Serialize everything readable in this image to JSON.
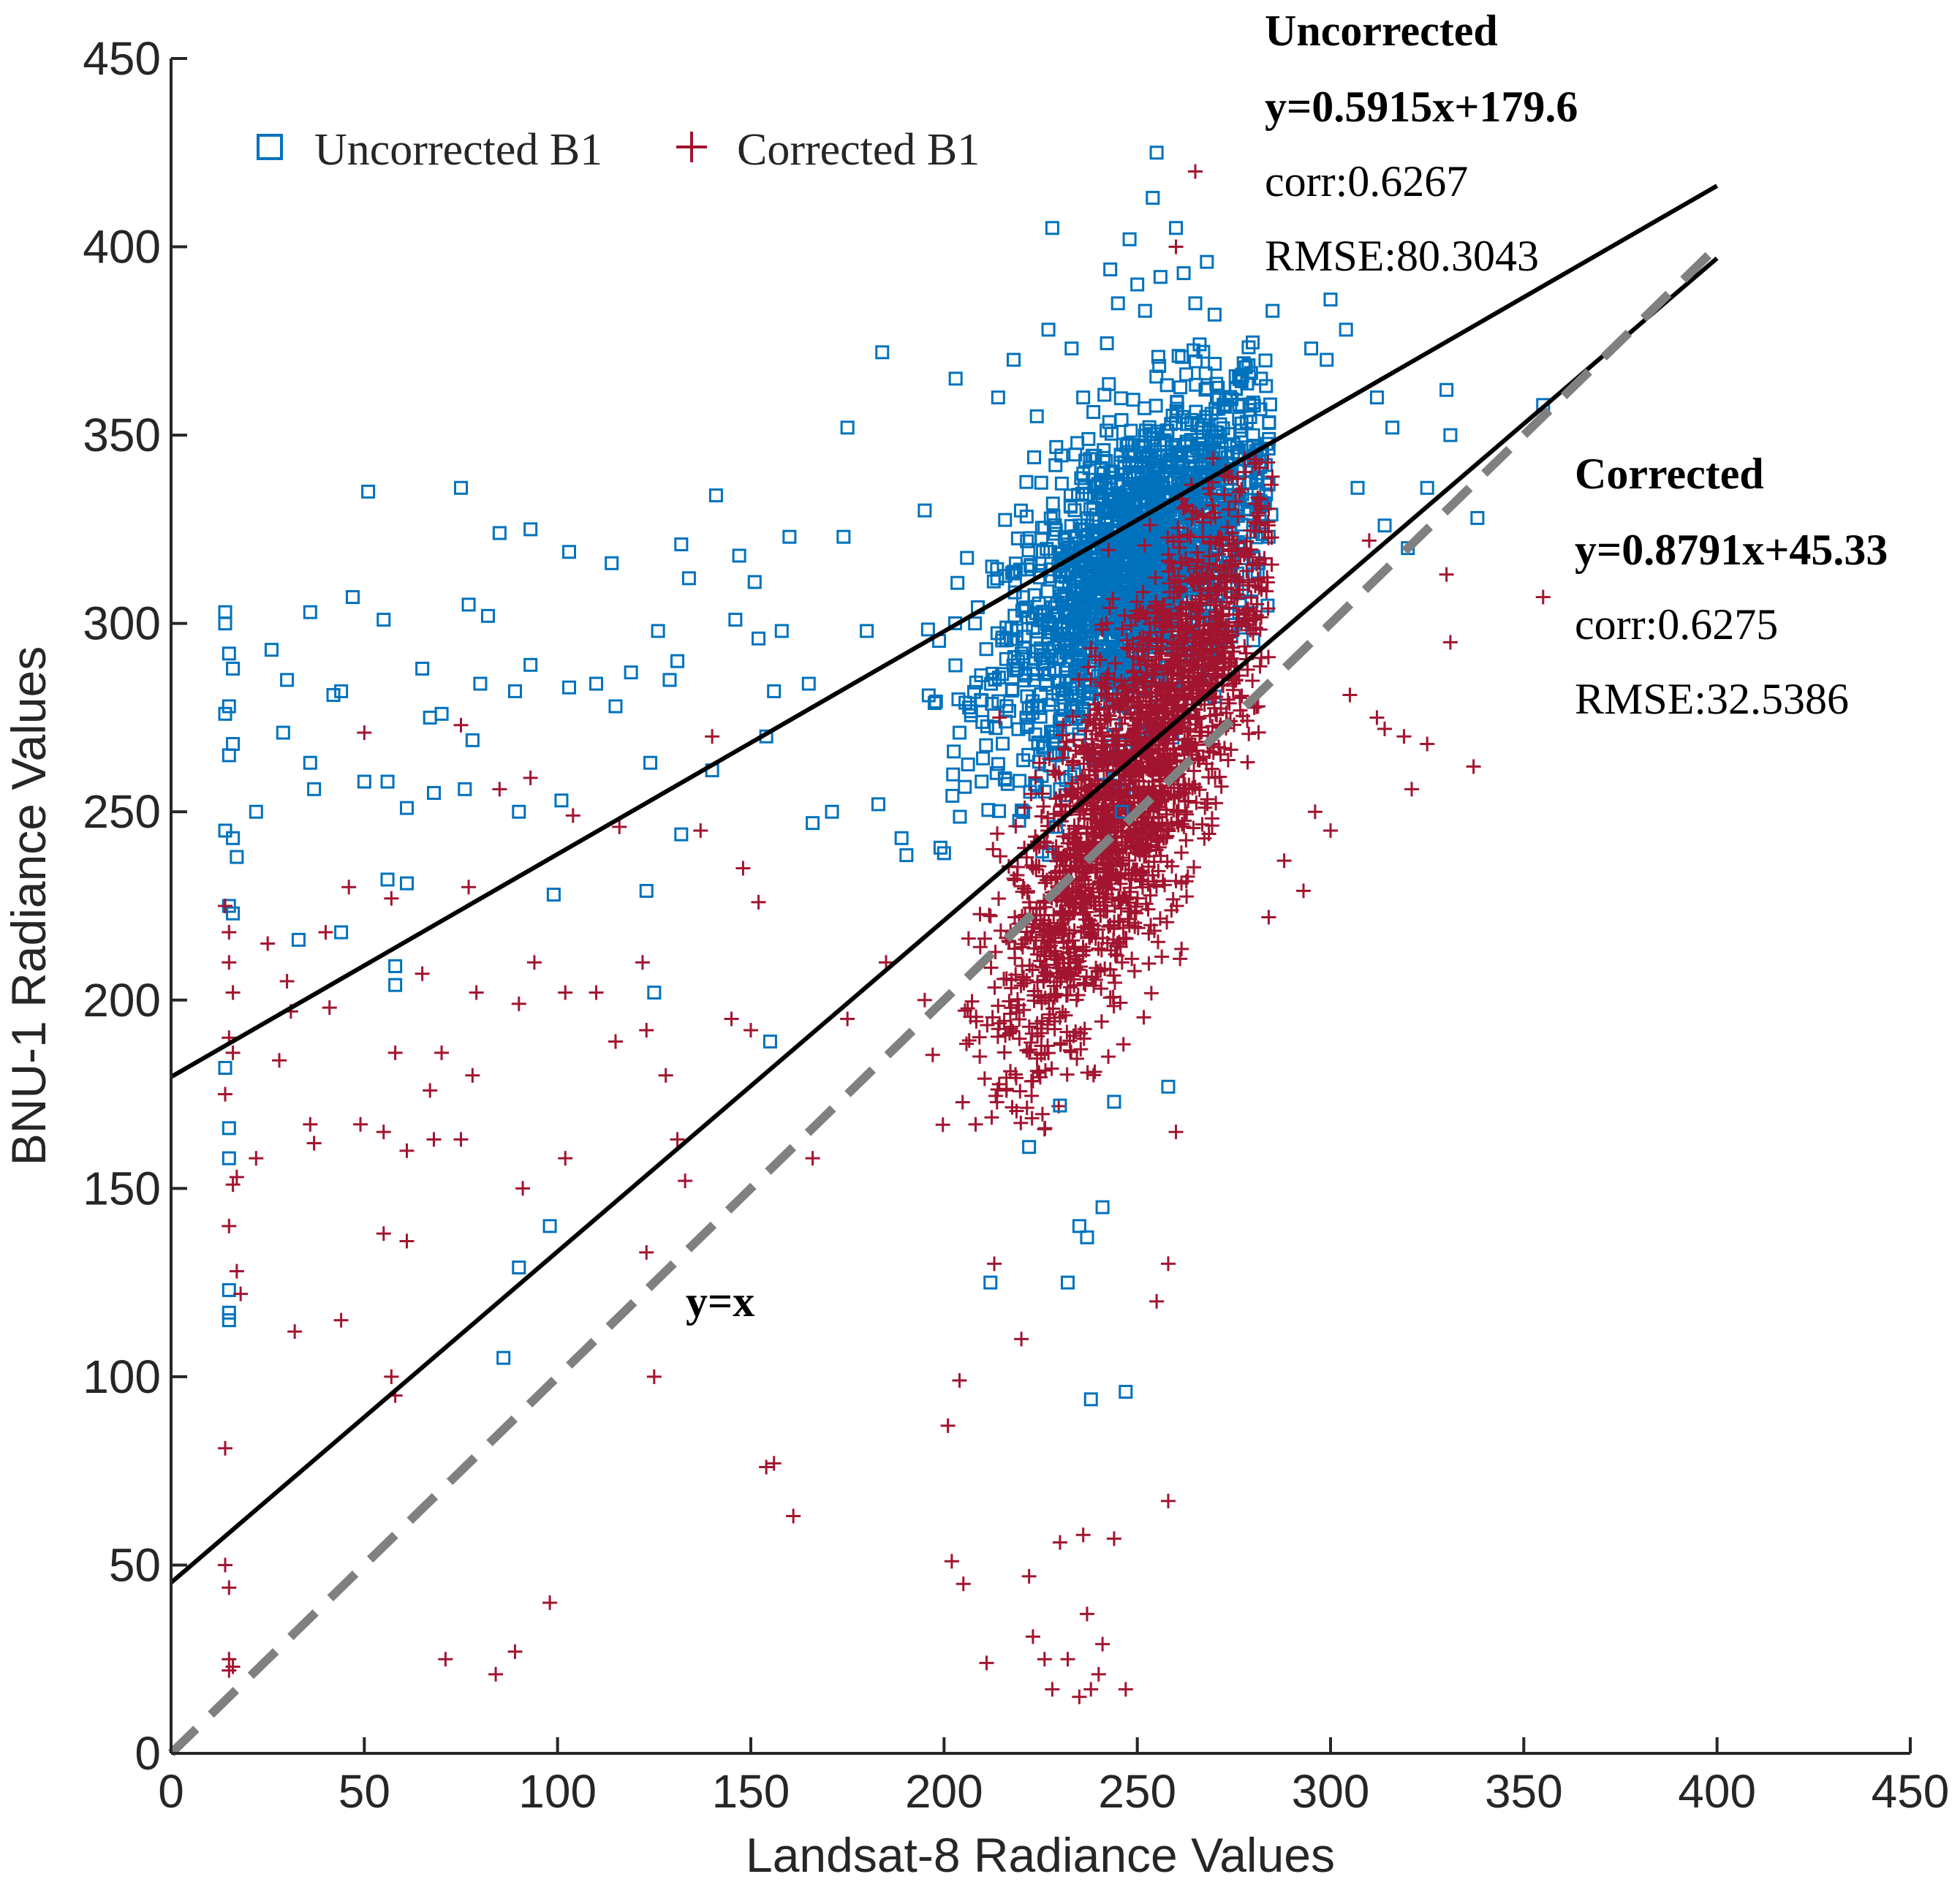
{
  "chart_data": {
    "type": "scatter",
    "xlabel": "Landsat-8 Radiance Values",
    "ylabel": "BNU-1 Radiance Values",
    "xlim": [
      0,
      450
    ],
    "ylim": [
      0,
      450
    ],
    "xticks": [
      "0",
      "50",
      "100",
      "150",
      "200",
      "250",
      "300",
      "350",
      "400",
      "450"
    ],
    "yticks": [
      "0",
      "50",
      "100",
      "150",
      "200",
      "250",
      "300",
      "350",
      "400",
      "450"
    ],
    "grid": false,
    "legend": {
      "placement": "top-left",
      "entries": [
        "Uncorrected B1",
        "Corrected B1"
      ]
    },
    "series": [
      {
        "name": "Uncorrected B1",
        "marker": "square",
        "color": "#0072BD",
        "cluster": {
          "x_center": 250,
          "y_center": 315,
          "x_spread": 18,
          "y_spread": 30
        },
        "points": [
          [
            14,
            303
          ],
          [
            14,
            300
          ],
          [
            15,
            292
          ],
          [
            16,
            288
          ],
          [
            15,
            278
          ],
          [
            14,
            276
          ],
          [
            16,
            268
          ],
          [
            15,
            265
          ],
          [
            14,
            245
          ],
          [
            16,
            243
          ],
          [
            17,
            238
          ],
          [
            15,
            225
          ],
          [
            16,
            223
          ],
          [
            14,
            182
          ],
          [
            15,
            166
          ],
          [
            15,
            158
          ],
          [
            15,
            123
          ],
          [
            15,
            117
          ],
          [
            15,
            115
          ],
          [
            22,
            250
          ],
          [
            26,
            293
          ],
          [
            29,
            271
          ],
          [
            30,
            285
          ],
          [
            33,
            216
          ],
          [
            36,
            263
          ],
          [
            37,
            256
          ],
          [
            36,
            303
          ],
          [
            42,
            281
          ],
          [
            44,
            282
          ],
          [
            44,
            218
          ],
          [
            47,
            307
          ],
          [
            50,
            258
          ],
          [
            51,
            335
          ],
          [
            55,
            301
          ],
          [
            56,
            232
          ],
          [
            56,
            258
          ],
          [
            58,
            209
          ],
          [
            58,
            204
          ],
          [
            61,
            231
          ],
          [
            61,
            251
          ],
          [
            65,
            288
          ],
          [
            67,
            275
          ],
          [
            68,
            255
          ],
          [
            70,
            276
          ],
          [
            75,
            336
          ],
          [
            76,
            256
          ],
          [
            77,
            305
          ],
          [
            78,
            269
          ],
          [
            80,
            284
          ],
          [
            82,
            302
          ],
          [
            85,
            324
          ],
          [
            86,
            105
          ],
          [
            89,
            282
          ],
          [
            90,
            250
          ],
          [
            90,
            129
          ],
          [
            93,
            325
          ],
          [
            93,
            289
          ],
          [
            99,
            228
          ],
          [
            98,
            140
          ],
          [
            101,
            253
          ],
          [
            103,
            319
          ],
          [
            103,
            283
          ],
          [
            110,
            284
          ],
          [
            114,
            316
          ],
          [
            115,
            278
          ],
          [
            119,
            287
          ],
          [
            123,
            229
          ],
          [
            124,
            263
          ],
          [
            125,
            202
          ],
          [
            126,
            298
          ],
          [
            129,
            285
          ],
          [
            131,
            290
          ],
          [
            132,
            244
          ],
          [
            132,
            321
          ],
          [
            134,
            312
          ],
          [
            140,
            261
          ],
          [
            141,
            334
          ],
          [
            146,
            301
          ],
          [
            147,
            318
          ],
          [
            151,
            311
          ],
          [
            152,
            296
          ],
          [
            154,
            270
          ],
          [
            155,
            189
          ],
          [
            156,
            282
          ],
          [
            158,
            298
          ],
          [
            160,
            323
          ],
          [
            165,
            284
          ],
          [
            166,
            247
          ],
          [
            171,
            250
          ],
          [
            174,
            323
          ],
          [
            175,
            352
          ],
          [
            180,
            298
          ],
          [
            183,
            252
          ],
          [
            184,
            372
          ],
          [
            189,
            243
          ],
          [
            195,
            330
          ],
          [
            200,
            239
          ],
          [
            203,
            365
          ],
          [
            204,
            271
          ],
          [
            208,
            300
          ],
          [
            212,
            125
          ],
          [
            214,
            360
          ],
          [
            218,
            370
          ],
          [
            222,
            161
          ],
          [
            224,
            355
          ],
          [
            225,
            314
          ],
          [
            227,
            378
          ],
          [
            228,
            405
          ],
          [
            229,
            246
          ],
          [
            230,
            172
          ],
          [
            232,
            125
          ],
          [
            233,
            373
          ],
          [
            235,
            140
          ],
          [
            236,
            360
          ],
          [
            237,
            137
          ],
          [
            238,
            94
          ],
          [
            241,
            145
          ],
          [
            243,
            394
          ],
          [
            244,
            173
          ],
          [
            245,
            385
          ],
          [
            246,
            250
          ],
          [
            247,
            96
          ],
          [
            248,
            402
          ],
          [
            250,
            390
          ],
          [
            252,
            383
          ],
          [
            254,
            413
          ],
          [
            255,
            425
          ],
          [
            256,
            392
          ],
          [
            258,
            177
          ],
          [
            260,
            405
          ],
          [
            262,
            393
          ],
          [
            265,
            385
          ],
          [
            268,
            396
          ],
          [
            270,
            382
          ],
          [
            282,
            365
          ],
          [
            285,
            383
          ],
          [
            295,
            373
          ],
          [
            299,
            370
          ],
          [
            300,
            386
          ],
          [
            304,
            378
          ],
          [
            307,
            336
          ],
          [
            312,
            360
          ],
          [
            314,
            326
          ],
          [
            316,
            352
          ],
          [
            320,
            320
          ],
          [
            325,
            336
          ],
          [
            330,
            362
          ],
          [
            331,
            350
          ],
          [
            338,
            328
          ],
          [
            355,
            358
          ]
        ]
      },
      {
        "name": "Corrected B1",
        "marker": "plus",
        "color": "#A2142F",
        "cluster": {
          "x_center": 250,
          "y_center": 260,
          "x_spread": 18,
          "y_spread": 45
        },
        "points": [
          [
            14,
            81
          ],
          [
            14,
            50
          ],
          [
            15,
            44
          ],
          [
            15,
            25
          ],
          [
            15,
            22
          ],
          [
            16,
            23
          ],
          [
            14,
            225
          ],
          [
            15,
            218
          ],
          [
            15,
            210
          ],
          [
            16,
            202
          ],
          [
            15,
            190
          ],
          [
            16,
            186
          ],
          [
            14,
            175
          ],
          [
            16,
            151
          ],
          [
            17,
            153
          ],
          [
            15,
            140
          ],
          [
            17,
            128
          ],
          [
            18,
            122
          ],
          [
            22,
            158
          ],
          [
            25,
            215
          ],
          [
            28,
            184
          ],
          [
            30,
            205
          ],
          [
            31,
            197
          ],
          [
            32,
            112
          ],
          [
            36,
            167
          ],
          [
            37,
            162
          ],
          [
            40,
            218
          ],
          [
            41,
            198
          ],
          [
            44,
            115
          ],
          [
            46,
            230
          ],
          [
            49,
            167
          ],
          [
            50,
            271
          ],
          [
            55,
            138
          ],
          [
            55,
            165
          ],
          [
            57,
            227
          ],
          [
            57,
            100
          ],
          [
            58,
            186
          ],
          [
            58,
            95
          ],
          [
            61,
            160
          ],
          [
            61,
            136
          ],
          [
            65,
            207
          ],
          [
            67,
            176
          ],
          [
            68,
            163
          ],
          [
            70,
            186
          ],
          [
            71,
            25
          ],
          [
            75,
            273
          ],
          [
            75,
            163
          ],
          [
            77,
            230
          ],
          [
            78,
            180
          ],
          [
            79,
            202
          ],
          [
            84,
            21
          ],
          [
            85,
            256
          ],
          [
            89,
            27
          ],
          [
            90,
            199
          ],
          [
            91,
            150
          ],
          [
            93,
            259
          ],
          [
            94,
            210
          ],
          [
            98,
            40
          ],
          [
            102,
            202
          ],
          [
            102,
            158
          ],
          [
            104,
            249
          ],
          [
            110,
            202
          ],
          [
            115,
            189
          ],
          [
            116,
            246
          ],
          [
            122,
            210
          ],
          [
            123,
            133
          ],
          [
            123,
            192
          ],
          [
            125,
            100
          ],
          [
            128,
            180
          ],
          [
            131,
            163
          ],
          [
            133,
            152
          ],
          [
            137,
            245
          ],
          [
            140,
            270
          ],
          [
            145,
            195
          ],
          [
            148,
            235
          ],
          [
            150,
            192
          ],
          [
            152,
            226
          ],
          [
            154,
            76
          ],
          [
            156,
            77
          ],
          [
            161,
            63
          ],
          [
            166,
            158
          ],
          [
            175,
            195
          ],
          [
            185,
            210
          ],
          [
            195,
            200
          ],
          [
            201,
            87
          ],
          [
            202,
            51
          ],
          [
            204,
            99
          ],
          [
            205,
            45
          ],
          [
            211,
            24
          ],
          [
            213,
            130
          ],
          [
            220,
            110
          ],
          [
            222,
            47
          ],
          [
            223,
            31
          ],
          [
            226,
            25
          ],
          [
            228,
            17
          ],
          [
            230,
            56
          ],
          [
            232,
            25
          ],
          [
            235,
            15
          ],
          [
            236,
            58
          ],
          [
            237,
            37
          ],
          [
            238,
            17
          ],
          [
            240,
            21
          ],
          [
            241,
            29
          ],
          [
            244,
            57
          ],
          [
            247,
            17
          ],
          [
            255,
            120
          ],
          [
            258,
            67
          ],
          [
            258,
            130
          ],
          [
            260,
            165
          ],
          [
            260,
            400
          ],
          [
            265,
            420
          ],
          [
            269,
            328
          ],
          [
            284,
            222
          ],
          [
            288,
            237
          ],
          [
            293,
            229
          ],
          [
            296,
            250
          ],
          [
            300,
            245
          ],
          [
            305,
            281
          ],
          [
            310,
            322
          ],
          [
            312,
            275
          ],
          [
            314,
            272
          ],
          [
            319,
            270
          ],
          [
            321,
            256
          ],
          [
            325,
            268
          ],
          [
            330,
            313
          ],
          [
            331,
            295
          ],
          [
            337,
            262
          ],
          [
            355,
            307
          ]
        ]
      }
    ],
    "lines": [
      {
        "name": "Uncorrected",
        "equation": "y=0.5915x+179.6",
        "slope": 0.5915,
        "intercept": 179.6,
        "x_range": [
          0,
          400
        ],
        "color": "#000000",
        "style": "solid"
      },
      {
        "name": "Corrected",
        "equation": "y=0.8791x+45.33",
        "slope": 0.8791,
        "intercept": 45.33,
        "x_range": [
          0,
          400
        ],
        "color": "#000000",
        "style": "solid"
      },
      {
        "name": "y=x",
        "slope": 1,
        "intercept": 0,
        "x_range": [
          0,
          400
        ],
        "color": "#808080",
        "style": "dashed"
      }
    ],
    "annotations": {
      "uncorrected": {
        "title": "Uncorrected",
        "equation": "y=0.5915x+179.6",
        "corr": "corr:0.6267",
        "rmse": "RMSE:80.3043"
      },
      "corrected": {
        "title": "Corrected",
        "equation": "y=0.8791x+45.33",
        "corr": "corr:0.6275",
        "rmse": "RMSE:32.5386"
      },
      "identity": "y=x"
    }
  }
}
